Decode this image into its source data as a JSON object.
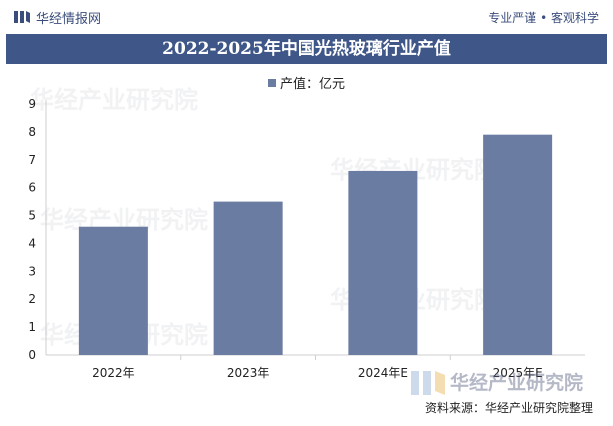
{
  "header": {
    "brand": "华经情报网",
    "slogan": "专业严谨 • 客观科学"
  },
  "title": "2022-2025年中国光热玻璃行业产值",
  "watermark": "华经产业研究院",
  "source": "资料来源：华经产业研究院整理",
  "colors": {
    "bar": "#6a7ca2",
    "title_bg": "#3f5688",
    "brand": "#3a4d7c"
  },
  "chart_data": {
    "type": "bar",
    "title": "2022-2025年中国光热玻璃行业产值",
    "categories": [
      "2022年",
      "2023年",
      "2024年E",
      "2025年E"
    ],
    "series": [
      {
        "name": "产值：亿元",
        "values": [
          4.6,
          5.5,
          6.6,
          7.9
        ]
      }
    ],
    "ylim": [
      0,
      9
    ],
    "yticks": [
      0,
      1,
      2,
      3,
      4,
      5,
      6,
      7,
      8,
      9
    ],
    "grid": false,
    "legend_position": "top-center"
  }
}
